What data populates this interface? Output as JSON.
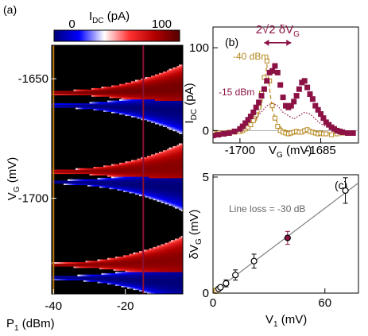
{
  "chart_data": [
    {
      "panel": "(a)",
      "type": "heatmap",
      "colorbar": {
        "label_main": "I",
        "label_sub": "DC",
        "label_unit": " (pA)",
        "tick_labels": [
          "0",
          "100"
        ],
        "ticks": [
          0,
          100
        ],
        "range": [
          -20,
          120
        ],
        "colors": [
          "#00007a",
          "#0000ff",
          "#ffffff",
          "#ff3030",
          "#b30000",
          "#550000"
        ]
      },
      "xlabel_main": "P",
      "xlabel_sub": "1",
      "xlabel_unit": " (dBm)",
      "ylabel_main": "V",
      "ylabel_sub": "G",
      "ylabel_unit": " (mV)",
      "xlim": [
        -40.5,
        -4
      ],
      "ylim": [
        -1740,
        -1636
      ],
      "xtick_labels": [
        "-40",
        "-20"
      ],
      "xticks": [
        -40,
        -20
      ],
      "ytick_labels": [
        "-1650",
        "-1700"
      ],
      "yticks": [
        -1650,
        -1700
      ],
      "background_color": "#000000",
      "markers": [
        {
          "p1": -40,
          "color": "#b87a10"
        },
        {
          "p1": -15,
          "color": "#8c1033"
        }
      ],
      "resonance_features": [
        {
          "v_center": -1656,
          "amplitude": 110,
          "opens": "up"
        },
        {
          "v_center": -1661,
          "amplitude": -20,
          "opens": "down"
        },
        {
          "v_center": -1689,
          "amplitude": 105,
          "opens": "up"
        },
        {
          "v_center": -1693,
          "amplitude": -20,
          "opens": "down"
        },
        {
          "v_center": -1728,
          "amplitude": 105,
          "opens": "up"
        },
        {
          "v_center": -1733,
          "amplitude": -20,
          "opens": "down"
        }
      ]
    },
    {
      "panel": "(b)",
      "type": "scatter",
      "xlabel_main": "V",
      "xlabel_sub": "G",
      "xlabel_unit": " (mV)",
      "ylabel_main": "I",
      "ylabel_sub": "DC",
      "ylabel_unit": " (pA)",
      "xlim": [
        -1705,
        -1678
      ],
      "ylim": [
        -15,
        125
      ],
      "xtick_labels": [
        "-1700",
        "-1685"
      ],
      "xticks": [
        -1700,
        -1685
      ],
      "ytick_labels": [
        "0",
        "100"
      ],
      "yticks": [
        0,
        100
      ],
      "annotation_prefix": "2√2 δV",
      "annotation_sub": "G",
      "annotation_span": [
        -1695.5,
        -1690.5
      ],
      "annotation_y": 106,
      "series": [
        {
          "name": "-40 dBm",
          "color": "#b5851b",
          "marker": "square-open",
          "x": [
            -1706,
            -1705,
            -1704,
            -1703,
            -1702,
            -1701,
            -1700,
            -1699.5,
            -1699,
            -1698.5,
            -1698,
            -1697.5,
            -1697,
            -1696.5,
            -1696,
            -1695.5,
            -1695,
            -1694.5,
            -1694,
            -1693.5,
            -1693,
            -1692.5,
            -1692,
            -1691.5,
            -1691,
            -1690.5,
            -1690,
            -1689.5,
            -1689,
            -1688.5,
            -1688,
            -1687.5,
            -1687,
            -1686.5,
            -1686,
            -1685.5,
            -1685,
            -1684.5,
            -1684,
            -1683,
            -1682,
            -1681,
            -1680
          ],
          "y": [
            -3,
            -3,
            -3,
            -3,
            -2,
            -2,
            -1,
            0,
            2,
            4,
            7,
            12,
            19,
            28,
            45,
            64,
            84,
            60,
            30,
            15,
            5,
            0,
            -2,
            -3,
            -4,
            -3,
            -2,
            -1,
            -2,
            -2,
            0,
            1,
            -1,
            -2,
            -3,
            -4,
            -3,
            -4,
            -4,
            -5,
            -4,
            -3,
            -3
          ]
        },
        {
          "name": "-15 dBm",
          "color": "#8c1246",
          "marker": "square-filled",
          "x": [
            -1706,
            -1705,
            -1704,
            -1703,
            -1702,
            -1701,
            -1700,
            -1699.5,
            -1699,
            -1698.5,
            -1698,
            -1697.5,
            -1697,
            -1696.5,
            -1696,
            -1695.5,
            -1695,
            -1694.5,
            -1694,
            -1693.5,
            -1693,
            -1692.5,
            -1692,
            -1691.5,
            -1691,
            -1690.5,
            -1690,
            -1689.5,
            -1689,
            -1688.5,
            -1688,
            -1687.5,
            -1687,
            -1686.5,
            -1686,
            -1685.5,
            -1685,
            -1684.5,
            -1684,
            -1683.5,
            -1683,
            -1682.5,
            -1682,
            -1681.5,
            -1681,
            -1680,
            -1679
          ],
          "y": [
            -6,
            -6,
            -5,
            -4,
            -3,
            -1,
            2,
            5,
            9,
            13,
            17,
            22,
            28,
            34,
            42,
            50,
            60,
            70,
            72,
            78,
            70,
            55,
            40,
            30,
            28,
            30,
            35,
            42,
            50,
            58,
            60,
            52,
            44,
            38,
            30,
            25,
            20,
            15,
            10,
            7,
            4,
            2,
            0,
            -1,
            -2,
            -3,
            -3
          ]
        },
        {
          "name": "",
          "color": "#b5851b",
          "marker": "dashed-line",
          "x": [
            -1706,
            -1702,
            -1699,
            -1697,
            -1696,
            -1695.5,
            -1695,
            -1694.5,
            -1694,
            -1693,
            -1692,
            -1690,
            -1688,
            -1686,
            -1684,
            -1680
          ],
          "y": [
            -2,
            -1,
            3,
            12,
            30,
            55,
            80,
            50,
            25,
            8,
            1,
            -2,
            -2,
            -3,
            -3,
            -3
          ]
        },
        {
          "name": "",
          "color": "#8c1246",
          "marker": "dotted-line",
          "x": [
            -1706,
            -1702,
            -1699,
            -1697,
            -1695,
            -1694,
            -1693,
            -1692,
            -1690,
            -1689,
            -1688,
            -1687,
            -1685,
            -1683,
            -1681,
            -1679
          ],
          "y": [
            -4,
            -2,
            3,
            15,
            30,
            33,
            30,
            22,
            14,
            18,
            22,
            20,
            8,
            2,
            -1,
            -2
          ]
        }
      ]
    },
    {
      "panel": "(c)",
      "type": "scatter",
      "xlabel_main": "V",
      "xlabel_sub": "1",
      "xlabel_unit": " (mV)",
      "ylabel_main": "δV",
      "ylabel_sub": "G",
      "ylabel_unit": " (mV)",
      "xlim": [
        0,
        78
      ],
      "ylim": [
        0,
        5.1
      ],
      "xtick_labels": [
        "0",
        "60"
      ],
      "xticks": [
        0,
        60
      ],
      "ytick_labels": [
        "0",
        "5"
      ],
      "yticks": [
        0,
        5
      ],
      "annotation": "Line loss = -30 dB",
      "fit_line": {
        "x": [
          0,
          78
        ],
        "y": [
          0.02,
          4.75
        ],
        "color": "#808080"
      },
      "points": {
        "x": [
          1.5,
          2.0,
          3.0,
          4.0,
          7.0,
          12.0,
          22.0,
          40.0,
          71.0
        ],
        "y": [
          0.1,
          0.12,
          0.18,
          0.25,
          0.42,
          0.78,
          1.38,
          2.38,
          4.42
        ],
        "err": [
          0.05,
          0.05,
          0.06,
          0.08,
          0.15,
          0.22,
          0.3,
          0.28,
          0.55
        ],
        "fill": [
          "#ffffff",
          "#ffffff",
          "#ffffff",
          "#ffffff",
          "#ffffff",
          "#ffffff",
          "#ffffff",
          "#8c1246",
          "#ffffff"
        ],
        "edge": [
          "#b5851b",
          "#b5851b",
          "#000000",
          "#000000",
          "#000000",
          "#000000",
          "#000000",
          "#000000",
          "#000000"
        ]
      }
    }
  ]
}
